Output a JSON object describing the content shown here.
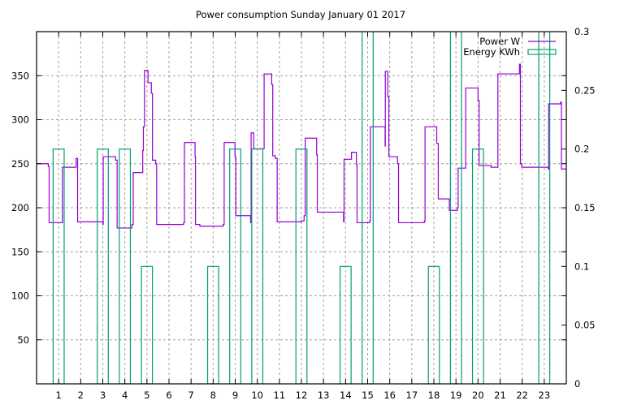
{
  "chart_data": {
    "type": "line",
    "title": "Power consumption Sunday January 01 2017",
    "xlabel": "",
    "ylabel": "",
    "y2label": "",
    "xlim": [
      0,
      24
    ],
    "ylim": [
      0,
      400
    ],
    "y2lim": [
      0,
      0.3
    ],
    "grid": true,
    "legend_placement": "top-right",
    "x_ticks": [
      "1",
      "2",
      "3",
      "4",
      "5",
      "6",
      "7",
      "8",
      "9",
      "10",
      "11",
      "12",
      "13",
      "14",
      "15",
      "16",
      "17",
      "18",
      "19",
      "20",
      "21",
      "22",
      "23"
    ],
    "y_ticks": [
      "50",
      "100",
      "150",
      "200",
      "250",
      "300",
      "350"
    ],
    "y2_ticks": [
      "0",
      "0.05",
      "0.1",
      "0.15",
      "0.2",
      "0.25",
      "0.3"
    ],
    "colors": {
      "power": "#9400d3",
      "energy": "#009e73",
      "grid": "#a0a0a0"
    },
    "series": [
      {
        "name": "Power W",
        "style": "steps",
        "axis": "y",
        "x": [
          0,
          0.53,
          0.57,
          1.17,
          1.79,
          1.86,
          3.0,
          3.02,
          3.58,
          3.65,
          4.32,
          4.38,
          4.81,
          4.84,
          4.89,
          5.05,
          5.2,
          5.25,
          5.4,
          5.44,
          6.66,
          6.7,
          7.18,
          7.2,
          7.4,
          8.45,
          8.5,
          8.99,
          9.03,
          9.7,
          9.72,
          9.84,
          10.31,
          10.65,
          10.7,
          10.82,
          10.9,
          11.99,
          12.12,
          12.17,
          12.69,
          12.72,
          13.91,
          13.93,
          14.27,
          14.49,
          14.52,
          15.09,
          15.12,
          15.79,
          15.8,
          15.91,
          15.96,
          16.35,
          16.4,
          17.57,
          17.6,
          18.13,
          18.2,
          18.7,
          19.07,
          19.1,
          19.44,
          20.0,
          20.05,
          20.59,
          20.9,
          21.88,
          21.92,
          21.98,
          23.18,
          23.2,
          23.74,
          23.78
        ],
        "values": [
          250,
          247,
          183,
          246,
          256,
          184,
          181,
          258,
          254,
          177,
          181,
          240,
          265,
          292,
          356,
          342,
          330,
          254,
          250,
          181,
          183,
          274,
          258,
          181,
          179,
          181,
          274,
          258,
          191,
          183,
          285,
          267,
          352,
          340,
          259,
          256,
          184,
          185,
          191,
          279,
          260,
          195,
          184,
          255,
          263,
          249,
          183,
          185,
          292,
          270,
          355,
          326,
          258,
          250,
          183,
          185,
          292,
          273,
          210,
          197,
          200,
          245,
          336,
          322,
          248,
          246,
          352,
          363,
          250,
          246,
          244,
          318,
          320,
          244
        ]
      },
      {
        "name": "Energy KWh",
        "style": "boxes",
        "axis": "y2",
        "x": [
          0,
          1,
          2,
          3,
          4,
          5,
          6,
          7,
          8,
          9,
          10,
          11,
          12,
          13,
          14,
          15,
          16,
          17,
          18,
          19,
          20,
          21,
          22,
          23
        ],
        "values": [
          0,
          0.2,
          0,
          0.2,
          0.2,
          0.1,
          0,
          0,
          0.1,
          0.2,
          0.2,
          0,
          0.2,
          0,
          0.1,
          0.4,
          0,
          0,
          0.1,
          0.4,
          0.2,
          0,
          0,
          0.4
        ]
      }
    ]
  }
}
